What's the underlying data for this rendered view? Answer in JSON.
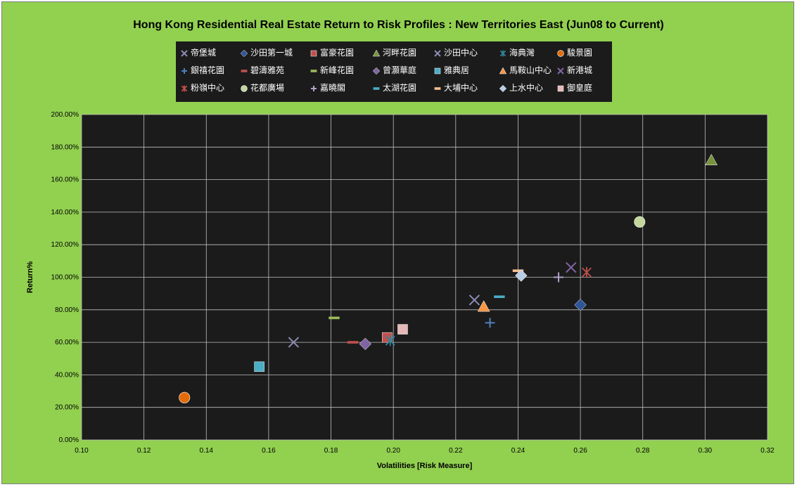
{
  "chart_data": {
    "type": "scatter",
    "title": "Hong Kong Residential Real Estate Return to Risk Profiles : New Territories East  (Jun08 to Current)",
    "xlabel": "Volatilities  [Risk Measure]",
    "ylabel": "Return%",
    "xlim": [
      0.1,
      0.32
    ],
    "ylim": [
      0,
      200
    ],
    "x_ticks": [
      "0.10",
      "0.12",
      "0.14",
      "0.16",
      "0.18",
      "0.20",
      "0.22",
      "0.24",
      "0.26",
      "0.28",
      "0.30",
      "0.32"
    ],
    "y_ticks": [
      "0.00%",
      "20.00%",
      "40.00%",
      "60.00%",
      "80.00%",
      "100.00%",
      "120.00%",
      "140.00%",
      "160.00%",
      "180.00%",
      "200.00%"
    ],
    "grid": true,
    "legend_position": "top",
    "background": "#92d050",
    "plot_background": "#1b1b1b",
    "series": [
      {
        "name": "帝堡城",
        "marker": "x",
        "color": "#8b8bb3",
        "x": 0.168,
        "y": 60
      },
      {
        "name": "沙田第一城",
        "marker": "diamond",
        "color": "#2e5597",
        "x": 0.26,
        "y": 83
      },
      {
        "name": "富豪花園",
        "marker": "square",
        "color": "#c0504d",
        "x": 0.198,
        "y": 63
      },
      {
        "name": "河畔花園",
        "marker": "triangle",
        "color": "#77933c",
        "x": 0.302,
        "y": 172
      },
      {
        "name": "沙田中心",
        "marker": "x",
        "color": "#8b8bb3",
        "x": 0.226,
        "y": 86
      },
      {
        "name": "海典灣",
        "marker": "star",
        "color": "#31859c",
        "x": 0.199,
        "y": 61
      },
      {
        "name": "駿景園",
        "marker": "circle",
        "color": "#e36c09",
        "x": 0.133,
        "y": 26
      },
      {
        "name": "銀禧花園",
        "marker": "plus",
        "color": "#4f81bd",
        "x": 0.231,
        "y": 72
      },
      {
        "name": "碧濤雅苑",
        "marker": "dash",
        "color": "#c0504d",
        "x": 0.187,
        "y": 60
      },
      {
        "name": "新峰花園",
        "marker": "dash",
        "color": "#9bbb59",
        "x": 0.181,
        "y": 75
      },
      {
        "name": "曾灝華庭",
        "marker": "diamond",
        "color": "#8064a2",
        "x": 0.191,
        "y": 59
      },
      {
        "name": "雅典居",
        "marker": "square",
        "color": "#4bacc6",
        "x": 0.157,
        "y": 45
      },
      {
        "name": "馬鞍山中心",
        "marker": "triangle",
        "color": "#f79646",
        "x": 0.229,
        "y": 82
      },
      {
        "name": "新港城",
        "marker": "x",
        "color": "#8064a2",
        "x": 0.257,
        "y": 106
      },
      {
        "name": "粉嶺中心",
        "marker": "star",
        "color": "#c0504d",
        "x": 0.262,
        "y": 103
      },
      {
        "name": "花都廣場",
        "marker": "circle",
        "color": "#c3d69b",
        "x": 0.279,
        "y": 134
      },
      {
        "name": "嘉曉閣",
        "marker": "plus",
        "color": "#b3a2c7",
        "x": 0.253,
        "y": 100
      },
      {
        "name": "太湖花園",
        "marker": "dash",
        "color": "#4bacc6",
        "x": 0.234,
        "y": 88
      },
      {
        "name": "大埔中心",
        "marker": "dash",
        "color": "#fac090",
        "x": 0.24,
        "y": 104
      },
      {
        "name": "上水中心",
        "marker": "diamond",
        "color": "#b9cde5",
        "x": 0.241,
        "y": 101
      },
      {
        "name": "御皇庭",
        "marker": "square",
        "color": "#e6b9b8",
        "x": 0.203,
        "y": 68
      }
    ]
  }
}
